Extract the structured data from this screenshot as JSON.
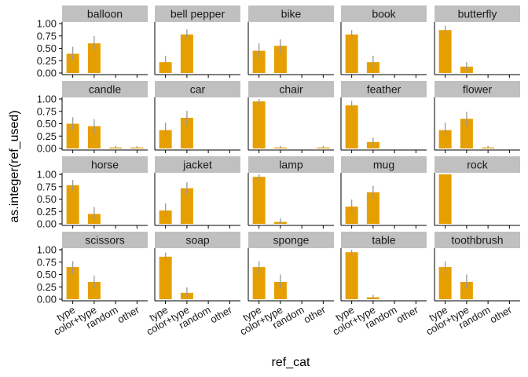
{
  "chart_data": {
    "type": "bar",
    "facet": true,
    "xlabel": "ref_cat",
    "ylabel": "as.integer(ref_used)",
    "categories": [
      "type",
      "color+type",
      "random",
      "other"
    ],
    "ylim": [
      0,
      1
    ],
    "yticks": [
      "0.00",
      "0.25",
      "0.50",
      "0.75",
      "1.00"
    ],
    "colors": {
      "bar": "#E69F00",
      "errorbar": "#999999",
      "strip": "#C0C0C0",
      "axis": "#000000"
    },
    "panels": [
      {
        "label": "balloon",
        "values": [
          0.39,
          0.6,
          0,
          0
        ],
        "err_low": [
          0.26,
          0.47,
          0,
          0
        ],
        "err_high": [
          0.53,
          0.75,
          0,
          0
        ]
      },
      {
        "label": "bell pepper",
        "values": [
          0.22,
          0.78,
          0,
          0
        ],
        "err_low": [
          0.12,
          0.7,
          0,
          0
        ],
        "err_high": [
          0.35,
          0.88,
          0,
          0
        ]
      },
      {
        "label": "bike",
        "values": [
          0.45,
          0.55,
          0,
          0
        ],
        "err_low": [
          0.3,
          0.4,
          0,
          0
        ],
        "err_high": [
          0.6,
          0.68,
          0,
          0
        ]
      },
      {
        "label": "book",
        "values": [
          0.78,
          0.22,
          0,
          0
        ],
        "err_low": [
          0.65,
          0.1,
          0,
          0
        ],
        "err_high": [
          0.87,
          0.35,
          0,
          0
        ]
      },
      {
        "label": "butterfly",
        "values": [
          0.87,
          0.13,
          0,
          0
        ],
        "err_low": [
          0.78,
          0.05,
          0,
          0
        ],
        "err_high": [
          0.96,
          0.22,
          0,
          0
        ]
      },
      {
        "label": "candle",
        "values": [
          0.5,
          0.45,
          0.02,
          0.02
        ],
        "err_low": [
          0.37,
          0.3,
          0,
          0
        ],
        "err_high": [
          0.63,
          0.59,
          0.05,
          0.05
        ]
      },
      {
        "label": "car",
        "values": [
          0.37,
          0.62,
          0,
          0
        ],
        "err_low": [
          0.24,
          0.47,
          0,
          0
        ],
        "err_high": [
          0.52,
          0.76,
          0,
          0
        ]
      },
      {
        "label": "chair",
        "values": [
          0.95,
          0.02,
          0,
          0.02
        ],
        "err_low": [
          0.88,
          0,
          0,
          0
        ],
        "err_high": [
          1.0,
          0.05,
          0,
          0.05
        ]
      },
      {
        "label": "feather",
        "values": [
          0.87,
          0.13,
          0,
          0
        ],
        "err_low": [
          0.78,
          0.05,
          0,
          0
        ],
        "err_high": [
          0.96,
          0.22,
          0,
          0
        ]
      },
      {
        "label": "flower",
        "values": [
          0.37,
          0.6,
          0.02,
          0
        ],
        "err_low": [
          0.24,
          0.46,
          0,
          0
        ],
        "err_high": [
          0.52,
          0.74,
          0.05,
          0
        ]
      },
      {
        "label": "horse",
        "values": [
          0.78,
          0.2,
          0,
          0
        ],
        "err_low": [
          0.67,
          0.1,
          0,
          0
        ],
        "err_high": [
          0.89,
          0.34,
          0,
          0
        ]
      },
      {
        "label": "jacket",
        "values": [
          0.27,
          0.72,
          0,
          0
        ],
        "err_low": [
          0.15,
          0.6,
          0,
          0
        ],
        "err_high": [
          0.41,
          0.84,
          0,
          0
        ]
      },
      {
        "label": "lamp",
        "values": [
          0.95,
          0.04,
          0,
          0
        ],
        "err_low": [
          0.88,
          0,
          0,
          0
        ],
        "err_high": [
          1.0,
          0.11,
          0,
          0
        ]
      },
      {
        "label": "mug",
        "values": [
          0.35,
          0.64,
          0,
          0
        ],
        "err_low": [
          0.22,
          0.52,
          0,
          0
        ],
        "err_high": [
          0.49,
          0.77,
          0,
          0
        ]
      },
      {
        "label": "rock",
        "values": [
          1.0,
          0,
          0,
          0
        ],
        "err_low": [
          1.0,
          0,
          0,
          0
        ],
        "err_high": [
          1.0,
          0,
          0,
          0
        ]
      },
      {
        "label": "scissors",
        "values": [
          0.65,
          0.35,
          0,
          0
        ],
        "err_low": [
          0.5,
          0.22,
          0,
          0
        ],
        "err_high": [
          0.77,
          0.48,
          0,
          0
        ]
      },
      {
        "label": "soap",
        "values": [
          0.86,
          0.13,
          0,
          0
        ],
        "err_low": [
          0.78,
          0.05,
          0,
          0
        ],
        "err_high": [
          0.94,
          0.24,
          0,
          0
        ]
      },
      {
        "label": "sponge",
        "values": [
          0.65,
          0.35,
          0,
          0
        ],
        "err_low": [
          0.5,
          0.22,
          0,
          0
        ],
        "err_high": [
          0.77,
          0.5,
          0,
          0
        ]
      },
      {
        "label": "table",
        "values": [
          0.95,
          0.04,
          0,
          0
        ],
        "err_low": [
          0.88,
          0,
          0,
          0
        ],
        "err_high": [
          1.0,
          0.09,
          0,
          0
        ]
      },
      {
        "label": "toothbrush",
        "values": [
          0.65,
          0.35,
          0,
          0
        ],
        "err_low": [
          0.5,
          0.22,
          0,
          0
        ],
        "err_high": [
          0.77,
          0.5,
          0,
          0
        ]
      }
    ]
  }
}
